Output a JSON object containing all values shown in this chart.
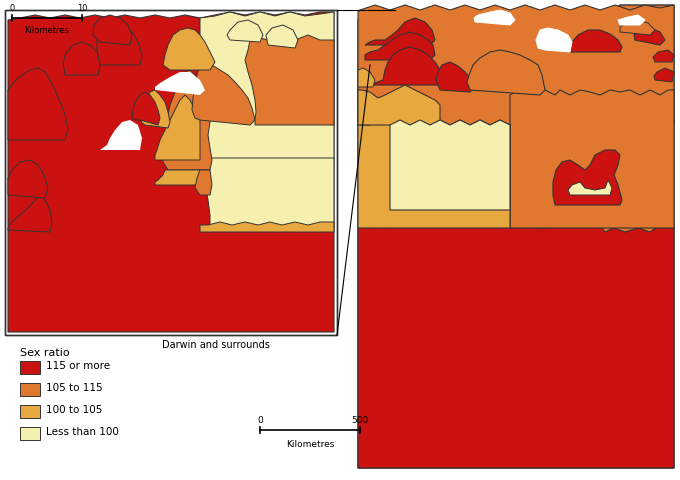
{
  "legend_title": "Sex ratio",
  "legend_items": [
    {
      "label": "115 or more",
      "color": "#cc1111"
    },
    {
      "label": "105 to 115",
      "color": "#e07830"
    },
    {
      "label": "100 to 105",
      "color": "#e8a840"
    },
    {
      "label": "Less than 100",
      "color": "#f5f0b0"
    }
  ],
  "bg_color": "#ffffff",
  "border_color": "#333333",
  "colors": {
    "red": "#cc1111",
    "orange": "#e07830",
    "amber": "#e8a840",
    "cream": "#f5f0b0",
    "white": "#ffffff"
  }
}
